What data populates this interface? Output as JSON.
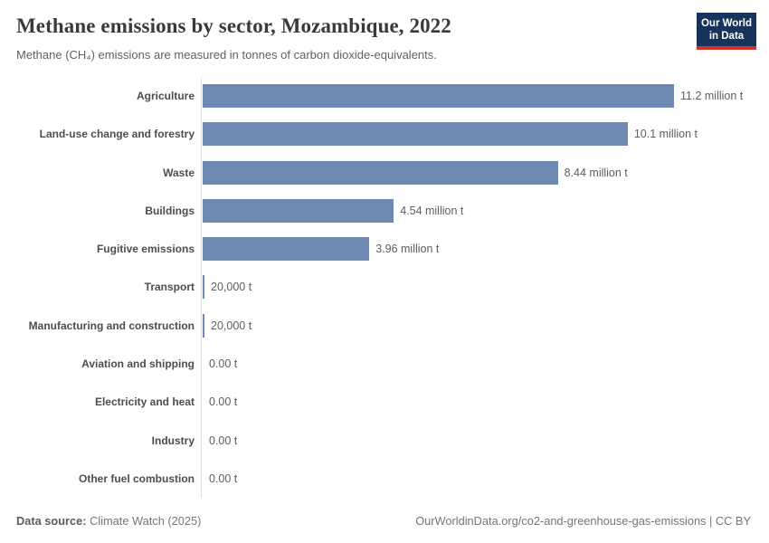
{
  "header": {
    "title": "Methane emissions by sector, Mozambique, 2022",
    "subtitle": "Methane (CH₄) emissions are measured in tonnes of carbon dioxide-equivalents.",
    "logo": {
      "line1": "Our World",
      "line2": "in Data"
    }
  },
  "chart_data": {
    "type": "bar",
    "orientation": "horizontal",
    "title": "Methane emissions by sector, Mozambique, 2022",
    "unit": "tonnes of carbon dioxide-equivalents",
    "categories": [
      "Agriculture",
      "Land-use change and forestry",
      "Waste",
      "Buildings",
      "Fugitive emissions",
      "Transport",
      "Manufacturing and construction",
      "Aviation and shipping",
      "Electricity and heat",
      "Industry",
      "Other fuel combustion"
    ],
    "values": [
      11200000,
      10100000,
      8440000,
      4540000,
      3960000,
      20000,
      20000,
      0,
      0,
      0,
      0
    ],
    "value_labels": [
      "11.2 million t",
      "10.1 million t",
      "8.44 million t",
      "4.54 million t",
      "3.96 million t",
      "20,000 t",
      "20,000 t",
      "0.00 t",
      "0.00 t",
      "0.00 t",
      "0.00 t"
    ],
    "xlim": [
      0,
      11200000
    ],
    "grid": false,
    "legend": false
  },
  "footer": {
    "source_label": "Data source:",
    "source_value": "Climate Watch (2025)",
    "attribution": "OurWorldinData.org/co2-and-greenhouse-gas-emissions | CC BY"
  },
  "colors": {
    "bar": "#6e89b2",
    "axis_line": "#dedede",
    "logo_background": "#16335b",
    "logo_underline": "#d0342c",
    "title_text": "#3a3a3a",
    "subtitle_text": "#616161",
    "category_label_text": "#4d4d4d",
    "value_label_text": "#5e5e5e"
  }
}
